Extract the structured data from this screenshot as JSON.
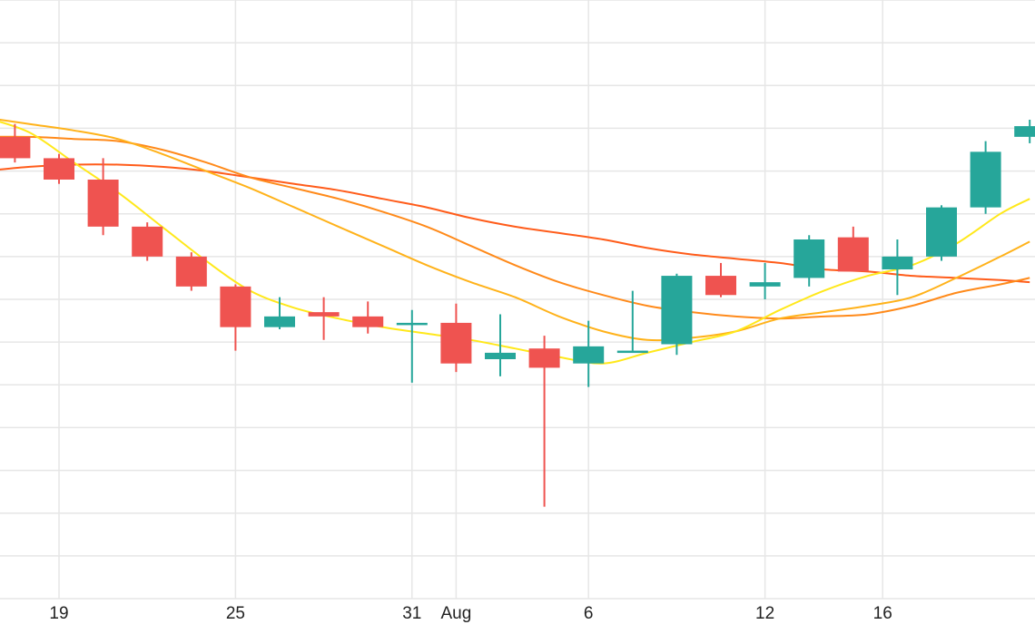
{
  "chart_data": {
    "type": "candlestick",
    "x_tick_labels": [
      {
        "day": 19,
        "label": "19"
      },
      {
        "day": 25,
        "label": "25"
      },
      {
        "day": 31,
        "label": "31"
      },
      {
        "day": 32.5,
        "label": "Aug"
      },
      {
        "day": 37,
        "label": "6"
      },
      {
        "day": 43,
        "label": "12"
      },
      {
        "day": 47,
        "label": "16"
      }
    ],
    "y_range": [
      0,
      14
    ],
    "grid": true,
    "colors": {
      "up": "#26a69a",
      "down": "#ef5350",
      "grid": "#e6e6e6",
      "ma_short": "#ffe81a",
      "ma_mid": "#ffb21a",
      "ma_long": "#ff8a1a",
      "ma_longest": "#ff5c1a"
    },
    "candles": [
      {
        "day": 17.5,
        "open": 10.8,
        "high": 11.1,
        "low": 10.2,
        "close": 10.3
      },
      {
        "day": 19,
        "open": 10.3,
        "high": 10.4,
        "low": 9.7,
        "close": 9.8
      },
      {
        "day": 20.5,
        "open": 9.8,
        "high": 10.3,
        "low": 8.5,
        "close": 8.7
      },
      {
        "day": 22,
        "open": 8.7,
        "high": 8.8,
        "low": 7.9,
        "close": 8.0
      },
      {
        "day": 23.5,
        "open": 8.0,
        "high": 8.1,
        "low": 7.2,
        "close": 7.3
      },
      {
        "day": 25,
        "open": 7.3,
        "high": 7.35,
        "low": 5.8,
        "close": 6.35
      },
      {
        "day": 26.5,
        "open": 6.35,
        "high": 7.05,
        "low": 6.3,
        "close": 6.6
      },
      {
        "day": 28,
        "open": 6.7,
        "high": 7.05,
        "low": 6.05,
        "close": 6.6
      },
      {
        "day": 29.5,
        "open": 6.6,
        "high": 6.95,
        "low": 6.2,
        "close": 6.35
      },
      {
        "day": 31,
        "open": 6.4,
        "high": 6.75,
        "low": 5.05,
        "close": 6.45
      },
      {
        "day": 32.5,
        "open": 6.45,
        "high": 6.9,
        "low": 5.3,
        "close": 5.5
      },
      {
        "day": 34,
        "open": 5.6,
        "high": 6.65,
        "low": 5.2,
        "close": 5.75
      },
      {
        "day": 35.5,
        "open": 5.85,
        "high": 6.15,
        "low": 2.15,
        "close": 5.4
      },
      {
        "day": 37,
        "open": 5.5,
        "high": 6.5,
        "low": 4.95,
        "close": 5.9
      },
      {
        "day": 38.5,
        "open": 5.8,
        "high": 7.2,
        "low": 5.8,
        "close": 5.8
      },
      {
        "day": 40,
        "open": 5.95,
        "high": 7.6,
        "low": 5.7,
        "close": 7.55
      },
      {
        "day": 41.5,
        "open": 7.55,
        "high": 7.85,
        "low": 7.05,
        "close": 7.1
      },
      {
        "day": 43,
        "open": 7.3,
        "high": 7.85,
        "low": 7.0,
        "close": 7.4
      },
      {
        "day": 44.5,
        "open": 7.5,
        "high": 8.5,
        "low": 7.3,
        "close": 8.4
      },
      {
        "day": 46,
        "open": 8.45,
        "high": 8.7,
        "low": 7.65,
        "close": 7.65
      },
      {
        "day": 47.5,
        "open": 7.7,
        "high": 8.4,
        "low": 7.1,
        "close": 8.0
      },
      {
        "day": 49,
        "open": 8.0,
        "high": 9.2,
        "low": 7.9,
        "close": 9.15
      },
      {
        "day": 50.5,
        "open": 9.15,
        "high": 10.7,
        "low": 9.0,
        "close": 10.45
      },
      {
        "day": 52,
        "open": 10.8,
        "high": 11.2,
        "low": 10.65,
        "close": 11.05
      }
    ],
    "moving_averages": [
      {
        "key": "ma_short",
        "points": [
          [
            16.5,
            11.25
          ],
          [
            18,
            10.9
          ],
          [
            19.5,
            10.2
          ],
          [
            21,
            9.5
          ],
          [
            22.5,
            8.7
          ],
          [
            24,
            7.9
          ],
          [
            25.5,
            7.2
          ],
          [
            27,
            6.8
          ],
          [
            28.5,
            6.55
          ],
          [
            30,
            6.35
          ],
          [
            31.5,
            6.2
          ],
          [
            33,
            6.05
          ],
          [
            34.5,
            5.85
          ],
          [
            36,
            5.65
          ],
          [
            37.5,
            5.5
          ],
          [
            39,
            5.75
          ],
          [
            40.5,
            6.0
          ],
          [
            42,
            6.25
          ],
          [
            43.5,
            6.75
          ],
          [
            45,
            7.2
          ],
          [
            46.5,
            7.55
          ],
          [
            48,
            7.8
          ],
          [
            49.5,
            8.3
          ],
          [
            51,
            9.0
          ],
          [
            52,
            9.35
          ]
        ]
      },
      {
        "key": "ma_mid",
        "points": [
          [
            16.5,
            11.25
          ],
          [
            18,
            11.1
          ],
          [
            19.5,
            10.95
          ],
          [
            21,
            10.75
          ],
          [
            22.5,
            10.4
          ],
          [
            24,
            10.0
          ],
          [
            25.5,
            9.6
          ],
          [
            27,
            9.15
          ],
          [
            28.5,
            8.7
          ],
          [
            30,
            8.25
          ],
          [
            31.5,
            7.8
          ],
          [
            33,
            7.4
          ],
          [
            34.5,
            7.05
          ],
          [
            36,
            6.6
          ],
          [
            37.5,
            6.25
          ],
          [
            39,
            6.05
          ],
          [
            40.5,
            6.1
          ],
          [
            42,
            6.25
          ],
          [
            43.5,
            6.55
          ],
          [
            45,
            6.7
          ],
          [
            46.5,
            6.85
          ],
          [
            48,
            7.05
          ],
          [
            49.5,
            7.5
          ],
          [
            51,
            8.0
          ],
          [
            52,
            8.35
          ]
        ]
      },
      {
        "key": "ma_long",
        "points": [
          [
            16.5,
            10.8
          ],
          [
            18,
            10.8
          ],
          [
            19.5,
            10.75
          ],
          [
            21,
            10.7
          ],
          [
            22.5,
            10.5
          ],
          [
            24,
            10.2
          ],
          [
            25.5,
            9.85
          ],
          [
            27,
            9.6
          ],
          [
            28.5,
            9.35
          ],
          [
            30,
            9.05
          ],
          [
            31.5,
            8.7
          ],
          [
            33,
            8.25
          ],
          [
            34.5,
            7.8
          ],
          [
            36,
            7.4
          ],
          [
            37.5,
            7.1
          ],
          [
            39,
            6.85
          ],
          [
            40.5,
            6.7
          ],
          [
            42,
            6.6
          ],
          [
            43.5,
            6.55
          ],
          [
            45,
            6.6
          ],
          [
            46.5,
            6.65
          ],
          [
            48,
            6.85
          ],
          [
            49.5,
            7.15
          ],
          [
            51,
            7.35
          ],
          [
            52,
            7.5
          ]
        ]
      },
      {
        "key": "ma_longest",
        "points": [
          [
            16.5,
            10.0
          ],
          [
            18,
            10.1
          ],
          [
            19.5,
            10.15
          ],
          [
            21,
            10.15
          ],
          [
            22.5,
            10.1
          ],
          [
            24,
            10.0
          ],
          [
            25.5,
            9.85
          ],
          [
            27,
            9.7
          ],
          [
            28.5,
            9.55
          ],
          [
            30,
            9.35
          ],
          [
            31.5,
            9.15
          ],
          [
            33,
            8.9
          ],
          [
            34.5,
            8.7
          ],
          [
            36,
            8.55
          ],
          [
            37.5,
            8.4
          ],
          [
            39,
            8.2
          ],
          [
            40.5,
            8.05
          ],
          [
            42,
            7.95
          ],
          [
            43.5,
            7.85
          ],
          [
            45,
            7.7
          ],
          [
            46.5,
            7.65
          ],
          [
            48,
            7.55
          ],
          [
            49.5,
            7.5
          ],
          [
            51,
            7.45
          ],
          [
            52,
            7.4
          ]
        ]
      }
    ]
  }
}
